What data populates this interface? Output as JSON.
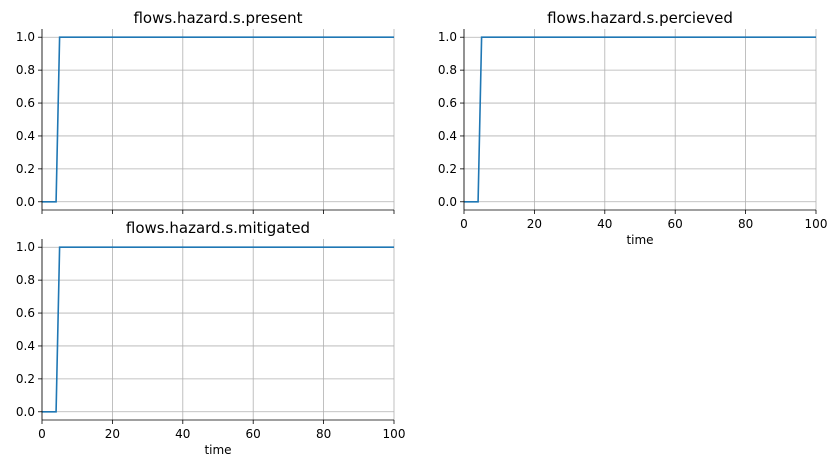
{
  "chart_data": [
    {
      "type": "line",
      "title": "flows.hazard.s.present",
      "xlabel": "",
      "ylabel": "",
      "xlim": [
        0,
        100
      ],
      "ylim": [
        -0.05,
        1.05
      ],
      "xticks": [
        0,
        20,
        40,
        60,
        80,
        100
      ],
      "yticks": [
        0.0,
        0.2,
        0.4,
        0.6,
        0.8,
        1.0
      ],
      "x_tick_labels_visible": false,
      "grid": true,
      "color": "#1f77b4",
      "series": [
        {
          "x": [
            0,
            4,
            5,
            100
          ],
          "y": [
            0,
            0,
            1,
            1
          ]
        }
      ]
    },
    {
      "type": "line",
      "title": "flows.hazard.s.percieved",
      "xlabel": "time",
      "ylabel": "",
      "xlim": [
        0,
        100
      ],
      "ylim": [
        -0.05,
        1.05
      ],
      "xticks": [
        0,
        20,
        40,
        60,
        80,
        100
      ],
      "yticks": [
        0.0,
        0.2,
        0.4,
        0.6,
        0.8,
        1.0
      ],
      "x_tick_labels_visible": true,
      "grid": true,
      "color": "#1f77b4",
      "series": [
        {
          "x": [
            0,
            4,
            5,
            100
          ],
          "y": [
            0,
            0,
            1,
            1
          ]
        }
      ]
    },
    {
      "type": "line",
      "title": "flows.hazard.s.mitigated",
      "xlabel": "time",
      "ylabel": "",
      "xlim": [
        0,
        100
      ],
      "ylim": [
        -0.05,
        1.05
      ],
      "xticks": [
        0,
        20,
        40,
        60,
        80,
        100
      ],
      "yticks": [
        0.0,
        0.2,
        0.4,
        0.6,
        0.8,
        1.0
      ],
      "x_tick_labels_visible": true,
      "grid": true,
      "color": "#1f77b4",
      "series": [
        {
          "x": [
            0,
            4,
            5,
            100
          ],
          "y": [
            0,
            0,
            1,
            1
          ]
        }
      ]
    }
  ]
}
